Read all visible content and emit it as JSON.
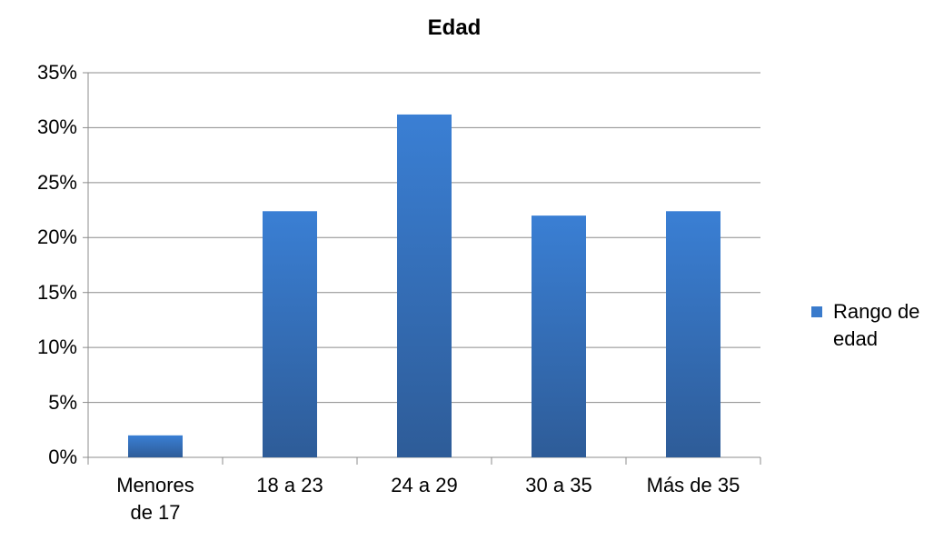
{
  "chart_data": {
    "type": "bar",
    "title": "Edad",
    "categories": [
      "Menores de 17",
      "18 a 23",
      "24 a 29",
      "30 a 35",
      "Más de 35"
    ],
    "series": [
      {
        "name": "Rango de edad",
        "color": "#3a7bcc",
        "values": [
          2,
          22.4,
          31.2,
          22,
          22.4
        ]
      }
    ],
    "ylim": [
      0,
      35
    ],
    "yticks": [
      {
        "value": 0,
        "label": "0%"
      },
      {
        "value": 5,
        "label": "5%"
      },
      {
        "value": 10,
        "label": "10%"
      },
      {
        "value": 15,
        "label": "15%"
      },
      {
        "value": 20,
        "label": "20%"
      },
      {
        "value": 25,
        "label": "25%"
      },
      {
        "value": 30,
        "label": "30%"
      },
      {
        "value": 35,
        "label": "35%"
      }
    ],
    "grid": true,
    "legend": "right"
  }
}
